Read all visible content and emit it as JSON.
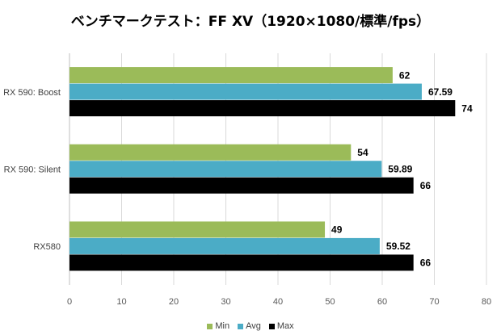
{
  "chart_data": {
    "type": "bar",
    "orientation": "horizontal",
    "title": "ベンチマークテスト：FF XV（1920×1080/標準/fps）",
    "categories": [
      "RX 590: Boost",
      "RX 590: Silent",
      "RX580"
    ],
    "series": [
      {
        "name": "Min",
        "color": "#9bbb59",
        "values": [
          62,
          54,
          49
        ],
        "labels": [
          "62",
          "54",
          "49"
        ]
      },
      {
        "name": "Avg",
        "color": "#4bacc6",
        "values": [
          67.59,
          59.89,
          59.52
        ],
        "labels": [
          "67.59",
          "59.89",
          "59.52"
        ]
      },
      {
        "name": "Max",
        "color": "#000000",
        "values": [
          74,
          66,
          66
        ],
        "labels": [
          "74",
          "66",
          "66"
        ]
      }
    ],
    "xlim": [
      0,
      80
    ],
    "xticks": [
      "0",
      "10",
      "20",
      "30",
      "40",
      "50",
      "60",
      "70",
      "80"
    ],
    "grid": true,
    "legend_position": "bottom"
  }
}
